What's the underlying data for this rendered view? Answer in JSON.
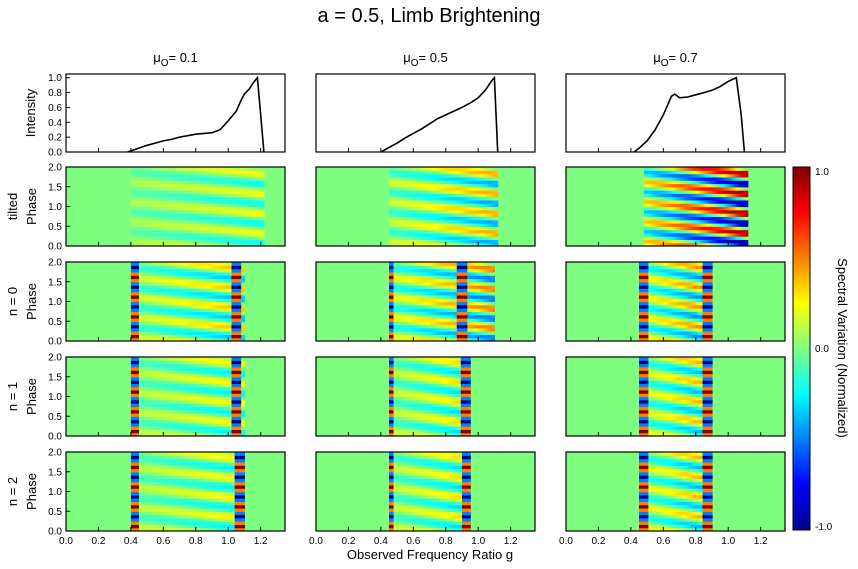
{
  "chart_data": {
    "type": "heatmap",
    "title": "a = 0.5, Limb Brightening",
    "columns": [
      {
        "mu_symbol": "μ",
        "mu_sub": "O",
        "mu_value": "= 0.1"
      },
      {
        "mu_symbol": "μ",
        "mu_sub": "O",
        "mu_value": "= 0.5"
      },
      {
        "mu_symbol": "μ",
        "mu_sub": "O",
        "mu_value": "= 0.7"
      }
    ],
    "row_labels": {
      "intensity": "Intensity",
      "tilted": [
        "tilted",
        "Phase"
      ],
      "n0": [
        "n = 0",
        "Phase"
      ],
      "n1": [
        "n = 1",
        "Phase"
      ],
      "n2": [
        "n = 2",
        "Phase"
      ]
    },
    "xlabel": "Observed Frequency Ratio g",
    "xlim": [
      0.0,
      1.35
    ],
    "xticks": [
      "0.0",
      "0.2",
      "0.4",
      "0.6",
      "0.8",
      "1.0",
      "1.2"
    ],
    "intensity_ylim": [
      0.0,
      1.05
    ],
    "intensity_yticks": [
      "0.0",
      "0.2",
      "0.4",
      "0.6",
      "0.8",
      "1.0"
    ],
    "phase_ylim": [
      0.0,
      2.0
    ],
    "phase_yticks": [
      "0.0",
      "0.5",
      "1.0",
      "1.5",
      "2.0"
    ],
    "colorbar": {
      "label": "Spectral Variation (Normalized)",
      "ticks": [
        "1.0",
        "0.0",
        "-1.0"
      ],
      "range": [
        -1.0,
        1.0
      ]
    },
    "intensity_profiles": [
      {
        "x": [
          0.38,
          0.42,
          0.46,
          0.5,
          0.55,
          0.6,
          0.65,
          0.7,
          0.75,
          0.8,
          0.85,
          0.9,
          0.95,
          1.0,
          1.05,
          1.08,
          1.1,
          1.13,
          1.15,
          1.18,
          1.2,
          1.22
        ],
        "y": [
          0.0,
          0.03,
          0.06,
          0.09,
          0.12,
          0.15,
          0.17,
          0.2,
          0.22,
          0.24,
          0.25,
          0.26,
          0.3,
          0.42,
          0.55,
          0.7,
          0.78,
          0.85,
          0.92,
          1.0,
          0.5,
          0.0
        ]
      },
      {
        "x": [
          0.4,
          0.45,
          0.5,
          0.55,
          0.6,
          0.65,
          0.7,
          0.75,
          0.8,
          0.85,
          0.9,
          0.95,
          1.0,
          1.03,
          1.05,
          1.08,
          1.1,
          1.12
        ],
        "y": [
          0.0,
          0.06,
          0.12,
          0.19,
          0.25,
          0.31,
          0.38,
          0.45,
          0.5,
          0.55,
          0.6,
          0.66,
          0.73,
          0.8,
          0.85,
          0.95,
          1.0,
          0.0
        ]
      },
      {
        "x": [
          0.42,
          0.45,
          0.5,
          0.55,
          0.6,
          0.63,
          0.65,
          0.67,
          0.7,
          0.75,
          0.8,
          0.85,
          0.9,
          0.95,
          1.0,
          1.05,
          1.08,
          1.1
        ],
        "y": [
          0.0,
          0.05,
          0.15,
          0.3,
          0.5,
          0.65,
          0.75,
          0.78,
          0.73,
          0.74,
          0.77,
          0.8,
          0.83,
          0.88,
          0.95,
          1.0,
          0.5,
          0.0
        ]
      }
    ],
    "phase_maps": {
      "tilted": [
        {
          "x0": 0.4,
          "x1": 1.22,
          "amp": 0.25,
          "freq": 2,
          "edges": []
        },
        {
          "x0": 0.45,
          "x1": 1.12,
          "amp": 0.45,
          "freq": 2,
          "edges": []
        },
        {
          "x0": 0.48,
          "x1": 1.12,
          "amp": 1.0,
          "freq": 2,
          "edges": []
        }
      ],
      "n0": [
        {
          "x0": 0.4,
          "x1": 1.1,
          "amp": 0.4,
          "freq": 2,
          "edges": [
            0.42,
            1.05
          ]
        },
        {
          "x0": 0.45,
          "x1": 1.1,
          "amp": 0.55,
          "freq": 2,
          "edges": [
            0.45,
            0.9
          ]
        },
        {
          "x0": 0.45,
          "x1": 0.9,
          "amp": 0.55,
          "freq": 2,
          "edges": [
            0.48,
            0.87
          ]
        }
      ],
      "n1": [
        {
          "x0": 0.4,
          "x1": 1.1,
          "amp": 0.3,
          "freq": 2,
          "edges": [
            0.42,
            1.05
          ]
        },
        {
          "x0": 0.45,
          "x1": 0.95,
          "amp": 0.35,
          "freq": 2,
          "edges": [
            0.45,
            0.92
          ]
        },
        {
          "x0": 0.45,
          "x1": 0.9,
          "amp": 0.45,
          "freq": 2,
          "edges": [
            0.48,
            0.87
          ]
        }
      ],
      "n2": [
        {
          "x0": 0.4,
          "x1": 1.1,
          "amp": 0.3,
          "freq": 2,
          "edges": [
            0.42,
            1.07
          ]
        },
        {
          "x0": 0.45,
          "x1": 0.95,
          "amp": 0.35,
          "freq": 2,
          "edges": [
            0.45,
            0.93
          ]
        },
        {
          "x0": 0.45,
          "x1": 0.9,
          "amp": 0.45,
          "freq": 2,
          "edges": [
            0.48,
            0.87
          ]
        }
      ]
    }
  },
  "colors": {
    "background_field": "#7fff7f",
    "line": "#000000",
    "frame": "#000000"
  }
}
